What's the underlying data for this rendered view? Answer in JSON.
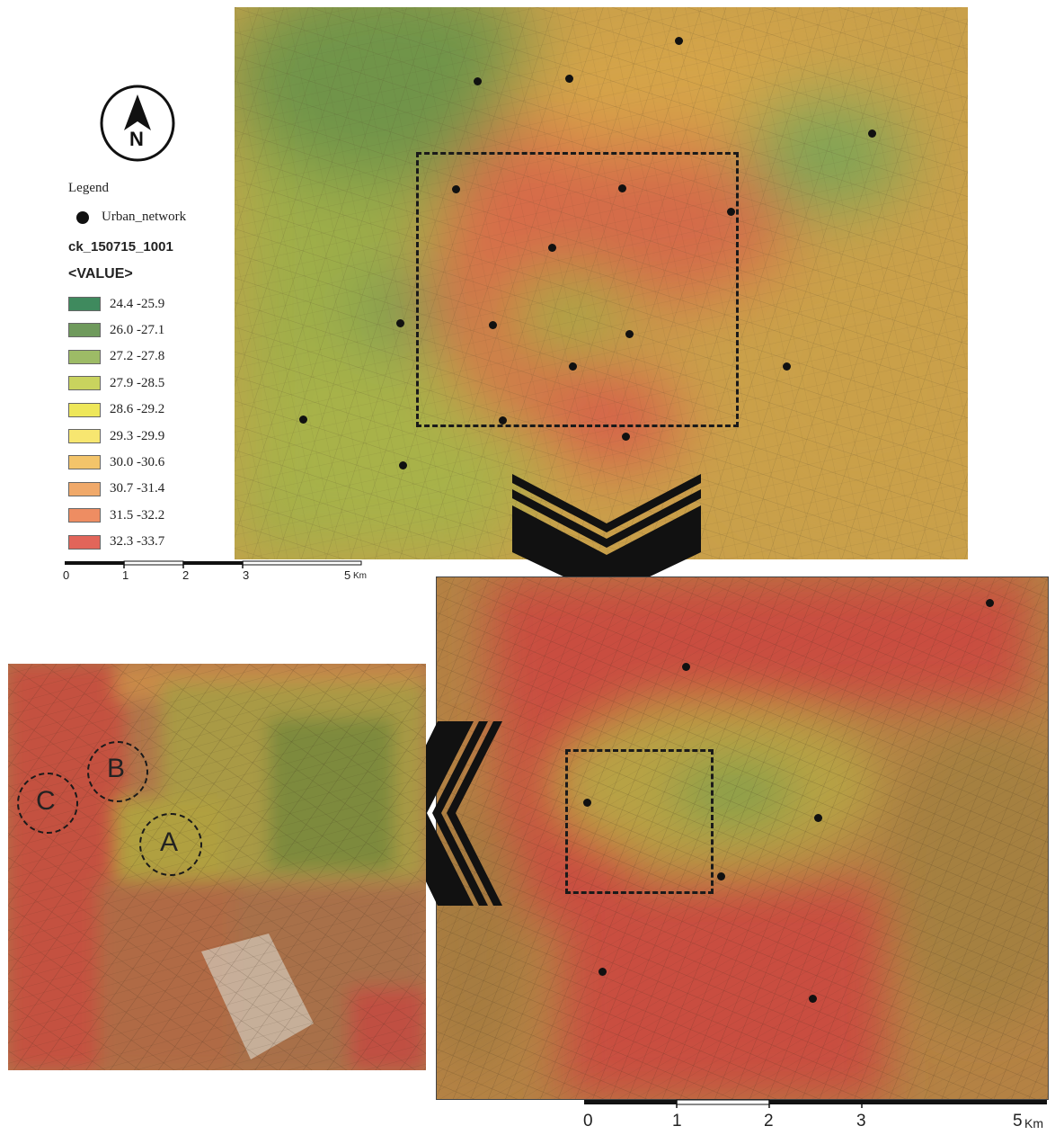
{
  "north_arrow": {
    "letter": "N"
  },
  "legend": {
    "title": "Legend",
    "network_label": "Urban_network",
    "layer_name": "ck_150715_1001",
    "value_header": "<VALUE>",
    "classes": [
      {
        "label": "24.4 -25.9",
        "color": "#3f8a5e"
      },
      {
        "label": "26.0 -27.1",
        "color": "#6f9a5c"
      },
      {
        "label": "27.2 -27.8",
        "color": "#9dbb66"
      },
      {
        "label": "27.9 -28.5",
        "color": "#c9d35e"
      },
      {
        "label": "28.6 -29.2",
        "color": "#eee75a"
      },
      {
        "label": "29.3 -29.9",
        "color": "#f7e670"
      },
      {
        "label": "30.0 -30.6",
        "color": "#f3c46a"
      },
      {
        "label": "30.7 -31.4",
        "color": "#f0a96a"
      },
      {
        "label": "31.5 -32.2",
        "color": "#ee8d62"
      },
      {
        "label": "32.3 -33.7",
        "color": "#e2655a"
      }
    ]
  },
  "scale_bar_top": {
    "ticks": [
      "0",
      "1",
      "2",
      "3",
      "5"
    ],
    "unit": "Km"
  },
  "scale_bar_bottom": {
    "ticks": [
      "0",
      "1",
      "2",
      "3",
      "5"
    ],
    "unit": "Km"
  },
  "site_labels": {
    "a": "A",
    "b": "B",
    "c": "C"
  }
}
